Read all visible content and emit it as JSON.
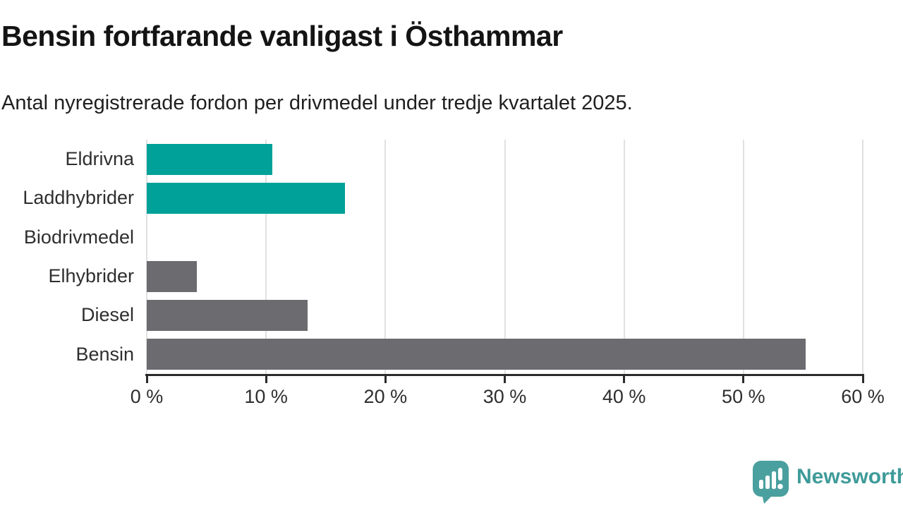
{
  "header": {
    "title": "Bensin fortfarande vanligast i Östhammar",
    "subtitle": "Antal nyregistrerade fordon per drivmedel under tredje kvartalet 2025."
  },
  "chart_data": {
    "type": "bar",
    "orientation": "horizontal",
    "title": "Bensin fortfarande vanligast i Östhammar",
    "subtitle": "Antal nyregistrerade fordon per drivmedel under tredje kvartalet 2025.",
    "categories": [
      "Eldrivna",
      "Laddhybrider",
      "Biodrivmedel",
      "Elhybrider",
      "Diesel",
      "Bensin"
    ],
    "values": [
      10.5,
      16.6,
      0,
      4.2,
      13.5,
      55.2
    ],
    "unit": "%",
    "bar_colors": [
      "#00a199",
      "#00a199",
      "#6b6b70",
      "#6b6b70",
      "#6b6b70",
      "#6b6b70"
    ],
    "xlabel": "",
    "ylabel": "",
    "xlim": [
      0,
      60
    ],
    "x_ticks": [
      0,
      10,
      20,
      30,
      40,
      50,
      60
    ],
    "x_tick_labels": [
      "0 %",
      "10 %",
      "20 %",
      "30 %",
      "40 %",
      "50 %",
      "60 %"
    ],
    "grid": "vertical-only",
    "legend": "none"
  },
  "colors": {
    "accent_teal": "#00a199",
    "neutral_gray": "#6b6b70",
    "gridline": "#e1e1e1",
    "axis": "#2b2b2b",
    "brand_teal": "#3e9b99",
    "background": "#ffffff"
  },
  "brand": {
    "name": "Newsworthy",
    "icon": "bar-chart-speech-bubble-icon"
  }
}
